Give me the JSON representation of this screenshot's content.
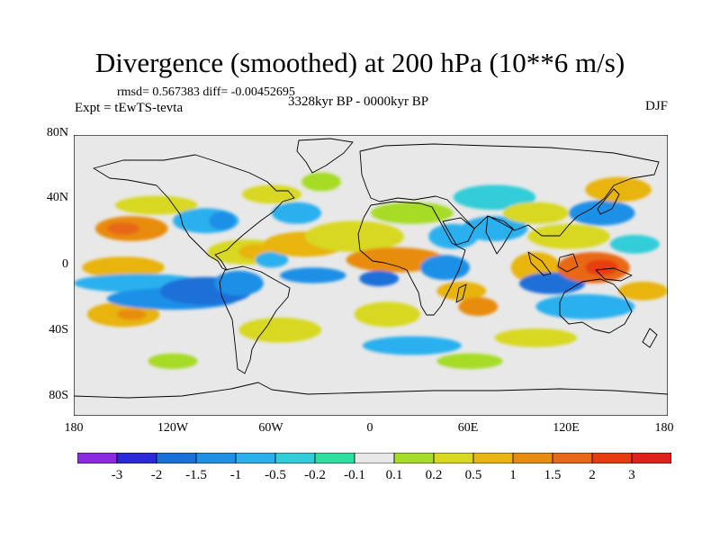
{
  "title": "Divergence (smoothed) at 200 hPa (10**6 m/s)",
  "stats": "rmsd= 0.567383 diff= -0.00452695",
  "experiment": "Expt = tEwTS-tevta",
  "period": "3328kyr BP - 0000kyr BP",
  "season": "DJF",
  "y_ticks": [
    "80N",
    "40N",
    "0",
    "40S",
    "80S"
  ],
  "x_ticks": [
    "180",
    "120W",
    "60W",
    "0",
    "60E",
    "120E",
    "180"
  ],
  "colorbar": {
    "labels": [
      "-3",
      "-2",
      "-1.5",
      "-1",
      "-0.5",
      "-0.2",
      "-0.1",
      "0.1",
      "0.2",
      "0.5",
      "1",
      "1.5",
      "2",
      "3"
    ],
    "colors": [
      "#8a2be2",
      "#2a2ad8",
      "#1a70d8",
      "#1e90e6",
      "#2bb0ee",
      "#30cdd8",
      "#2ee0a0",
      "#e8e8e8",
      "#a6dc28",
      "#d8d820",
      "#e8b410",
      "#e88c10",
      "#e86818",
      "#e83c10",
      "#e0201c"
    ]
  },
  "palette": {
    "neutral": "#e8e8e8",
    "frame": "#000000"
  },
  "map_data": {
    "projection": "cylindrical equidistant",
    "lon_range": [
      -180,
      180
    ],
    "lat_range": [
      -90,
      90
    ],
    "features": [
      {
        "lon": -145,
        "lat": 30,
        "rx": 22,
        "ry": 8,
        "value": 1.5
      },
      {
        "lon": -150,
        "lat": 30,
        "rx": 10,
        "ry": 4,
        "value": 2
      },
      {
        "lon": -150,
        "lat": 5,
        "rx": 25,
        "ry": 7,
        "value": 1
      },
      {
        "lon": -150,
        "lat": -25,
        "rx": 22,
        "ry": 8,
        "value": 1
      },
      {
        "lon": -145,
        "lat": -25,
        "rx": 9,
        "ry": 3.5,
        "value": 1.5
      },
      {
        "lon": -130,
        "lat": 45,
        "rx": 25,
        "ry": 6,
        "value": 0.5
      },
      {
        "lon": -140,
        "lat": -5,
        "rx": 40,
        "ry": 6,
        "value": -0.5
      },
      {
        "lon": -120,
        "lat": -15,
        "rx": 40,
        "ry": 7,
        "value": -1
      },
      {
        "lon": -100,
        "lat": -10,
        "rx": 28,
        "ry": 9,
        "value": -1.5
      },
      {
        "lon": -80,
        "lat": -5,
        "rx": 15,
        "ry": 8,
        "value": -1
      },
      {
        "lon": -75,
        "lat": 15,
        "rx": 24,
        "ry": 8,
        "value": 0.5
      },
      {
        "lon": -70,
        "lat": 15,
        "rx": 10,
        "ry": 5,
        "value": 1
      },
      {
        "lon": -100,
        "lat": 35,
        "rx": 20,
        "ry": 8,
        "value": -0.5
      },
      {
        "lon": -90,
        "lat": 35,
        "rx": 8,
        "ry": 6,
        "value": -1
      },
      {
        "lon": -60,
        "lat": 52,
        "rx": 18,
        "ry": 6,
        "value": 0.5
      },
      {
        "lon": -45,
        "lat": 40,
        "rx": 15,
        "ry": 7,
        "value": -0.5
      },
      {
        "lon": -30,
        "lat": 60,
        "rx": 12,
        "ry": 6,
        "value": 0.2
      },
      {
        "lon": -60,
        "lat": 10,
        "rx": 10,
        "ry": 5,
        "value": -0.5
      },
      {
        "lon": -40,
        "lat": 20,
        "rx": 25,
        "ry": 8,
        "value": 1
      },
      {
        "lon": -10,
        "lat": 25,
        "rx": 30,
        "ry": 10,
        "value": 0.5
      },
      {
        "lon": 15,
        "lat": 10,
        "rx": 30,
        "ry": 8,
        "value": 1.5
      },
      {
        "lon": -35,
        "lat": 0,
        "rx": 20,
        "ry": 5,
        "value": -1
      },
      {
        "lon": 5,
        "lat": -2,
        "rx": 12,
        "ry": 5,
        "value": -1.5
      },
      {
        "lon": 10,
        "lat": -25,
        "rx": 20,
        "ry": 8,
        "value": 0.5
      },
      {
        "lon": -55,
        "lat": -35,
        "rx": 25,
        "ry": 8,
        "value": 0.5
      },
      {
        "lon": 25,
        "lat": -45,
        "rx": 30,
        "ry": 6,
        "value": -0.5
      },
      {
        "lon": 25,
        "lat": 40,
        "rx": 25,
        "ry": 7,
        "value": 0.2
      },
      {
        "lon": 50,
        "lat": 25,
        "rx": 15,
        "ry": 8,
        "value": -0.5
      },
      {
        "lon": 45,
        "lat": 5,
        "rx": 15,
        "ry": 8,
        "value": -1
      },
      {
        "lon": 55,
        "lat": -10,
        "rx": 15,
        "ry": 6,
        "value": 1
      },
      {
        "lon": 65,
        "lat": -20,
        "rx": 12,
        "ry": 6,
        "value": 1.5
      },
      {
        "lon": 75,
        "lat": 30,
        "rx": 20,
        "ry": 8,
        "value": -0.5
      },
      {
        "lon": 75,
        "lat": 50,
        "rx": 25,
        "ry": 8,
        "value": -0.2
      },
      {
        "lon": 100,
        "lat": 40,
        "rx": 20,
        "ry": 7,
        "value": 0.5
      },
      {
        "lon": 100,
        "lat": 5,
        "rx": 15,
        "ry": 10,
        "value": 1
      },
      {
        "lon": 110,
        "lat": -5,
        "rx": 20,
        "ry": 7,
        "value": -1.5
      },
      {
        "lon": 135,
        "lat": 5,
        "rx": 22,
        "ry": 10,
        "value": 2
      },
      {
        "lon": 140,
        "lat": 5,
        "rx": 10,
        "ry": 5,
        "value": 3
      },
      {
        "lon": 120,
        "lat": 25,
        "rx": 25,
        "ry": 8,
        "value": 0.5
      },
      {
        "lon": 140,
        "lat": 40,
        "rx": 20,
        "ry": 8,
        "value": -1
      },
      {
        "lon": 150,
        "lat": 55,
        "rx": 20,
        "ry": 8,
        "value": 1
      },
      {
        "lon": 130,
        "lat": -20,
        "rx": 30,
        "ry": 8,
        "value": -0.5
      },
      {
        "lon": 165,
        "lat": -10,
        "rx": 15,
        "ry": 6,
        "value": 1
      },
      {
        "lon": 160,
        "lat": 20,
        "rx": 15,
        "ry": 6,
        "value": -0.2
      },
      {
        "lon": 100,
        "lat": -40,
        "rx": 25,
        "ry": 6,
        "value": 0.5
      },
      {
        "lon": -120,
        "lat": -55,
        "rx": 15,
        "ry": 5,
        "value": 0.2
      },
      {
        "lon": 60,
        "lat": -55,
        "rx": 20,
        "ry": 5,
        "value": 0.2
      }
    ]
  }
}
